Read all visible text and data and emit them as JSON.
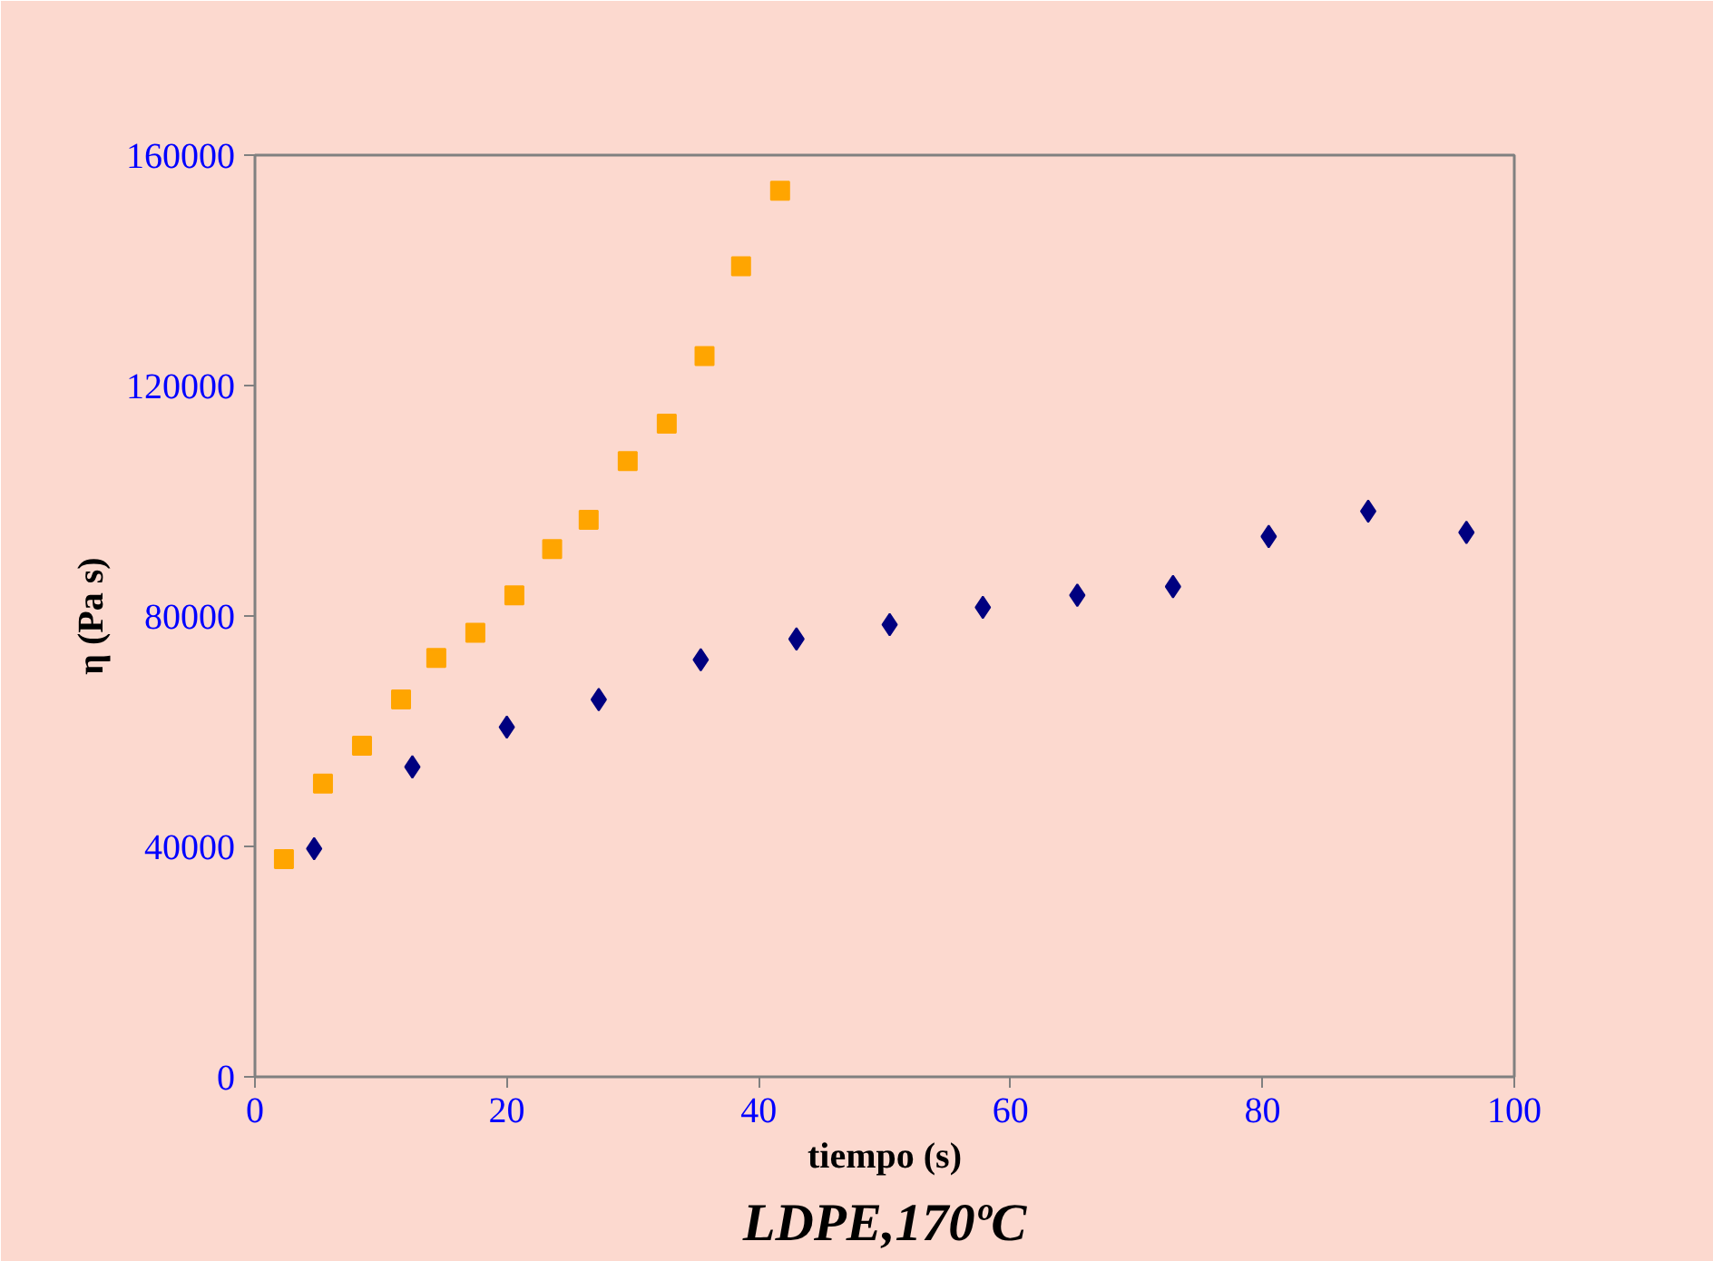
{
  "chart_data": {
    "type": "scatter",
    "title": "LDPE,170ºC",
    "xlabel": "tiempo (s)",
    "ylabel": "η (Pa s)",
    "xlim": [
      0,
      100
    ],
    "xticks": [
      0,
      20,
      40,
      60,
      80,
      100
    ],
    "ylim": [
      0,
      160000
    ],
    "yticks": [
      0,
      40000,
      80000,
      120000,
      160000
    ],
    "grid": false,
    "series": [
      {
        "color": "#ffa500",
        "marker": "square",
        "x": [
          2.3,
          5.4,
          8.5,
          11.6,
          14.4,
          17.5,
          20.6,
          23.6,
          26.5,
          29.6,
          32.7,
          35.7,
          38.6,
          41.7
        ],
        "values": [
          37800,
          50900,
          57500,
          65500,
          72700,
          77100,
          83600,
          91600,
          96700,
          106900,
          113400,
          125100,
          140700,
          153800
        ]
      },
      {
        "color": "#000080",
        "marker": "diamond",
        "x": [
          4.7,
          12.5,
          20.0,
          27.3,
          35.4,
          43.0,
          50.4,
          57.8,
          65.3,
          72.9,
          80.5,
          88.4,
          96.2
        ],
        "values": [
          39600,
          53800,
          60700,
          65500,
          72400,
          76000,
          78500,
          81500,
          83600,
          85100,
          93800,
          98200,
          94500
        ]
      }
    ]
  }
}
